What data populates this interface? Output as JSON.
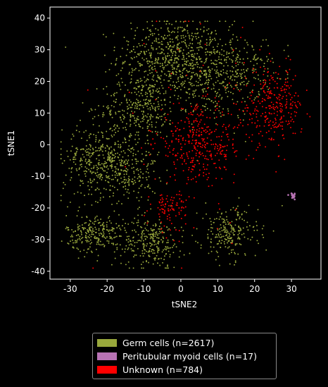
{
  "chart_data": {
    "type": "scatter",
    "title": "",
    "xlabel": "tSNE2",
    "ylabel": "tSNE1",
    "xlim": [
      -35.5,
      38
    ],
    "ylim": [
      -42.5,
      43.5
    ],
    "xticks": [
      "-30",
      "-20",
      "-10",
      "0",
      "10",
      "20",
      "30"
    ],
    "yticks": [
      "40",
      "30",
      "20",
      "10",
      "0",
      "-10",
      "-20",
      "-30",
      "-40"
    ],
    "grid": false,
    "legend_position": "bottom-outside",
    "series": [
      {
        "name": "Germ cells (n=2617)",
        "color": "#99a83c",
        "count": 2617,
        "clusters": [
          {
            "cx": -3,
            "cy": 28,
            "sx": 7,
            "sy": 6,
            "n": 520
          },
          {
            "cx": 8,
            "cy": 22,
            "sx": 7,
            "sy": 7,
            "n": 420
          },
          {
            "cx": -11,
            "cy": 12,
            "sx": 5,
            "sy": 5,
            "n": 300
          },
          {
            "cx": -22,
            "cy": -5,
            "sx": 5,
            "sy": 6,
            "n": 380
          },
          {
            "cx": -14,
            "cy": -8,
            "sx": 4,
            "sy": 5,
            "n": 180
          },
          {
            "cx": -23,
            "cy": -28,
            "sx": 4,
            "sy": 3,
            "n": 250
          },
          {
            "cx": -8,
            "cy": -31,
            "sx": 4,
            "sy": 4,
            "n": 250
          },
          {
            "cx": 13,
            "cy": -28,
            "sx": 4,
            "sy": 4,
            "n": 230
          },
          {
            "cx": 18,
            "cy": 25,
            "sx": 5,
            "sy": 4,
            "n": 87
          }
        ]
      },
      {
        "name": "Peritubular myoid cells (n=17)",
        "color": "#b873b4",
        "count": 17,
        "clusters": [
          {
            "cx": 30.5,
            "cy": -16.3,
            "sx": 0.5,
            "sy": 0.5,
            "n": 17
          }
        ]
      },
      {
        "name": "Unknown (n=784)",
        "color": "#ff0000",
        "count": 784,
        "clusters": [
          {
            "cx": 5,
            "cy": 0,
            "sx": 6,
            "sy": 6,
            "n": 360
          },
          {
            "cx": 25,
            "cy": 12,
            "sx": 4,
            "sy": 6,
            "n": 290
          },
          {
            "cx": -3,
            "cy": -20,
            "sx": 2.5,
            "sy": 3,
            "n": 90
          },
          {
            "cx": 0,
            "cy": 10,
            "sx": 10,
            "sy": 20,
            "n": 44
          }
        ]
      }
    ]
  },
  "legend": {
    "items": [
      {
        "label": "Germ cells (n=2617)",
        "color": "#99a83c"
      },
      {
        "label": "Peritubular myoid cells (n=17)",
        "color": "#b873b4"
      },
      {
        "label": "Unknown (n=784)",
        "color": "#ff0000"
      }
    ]
  }
}
